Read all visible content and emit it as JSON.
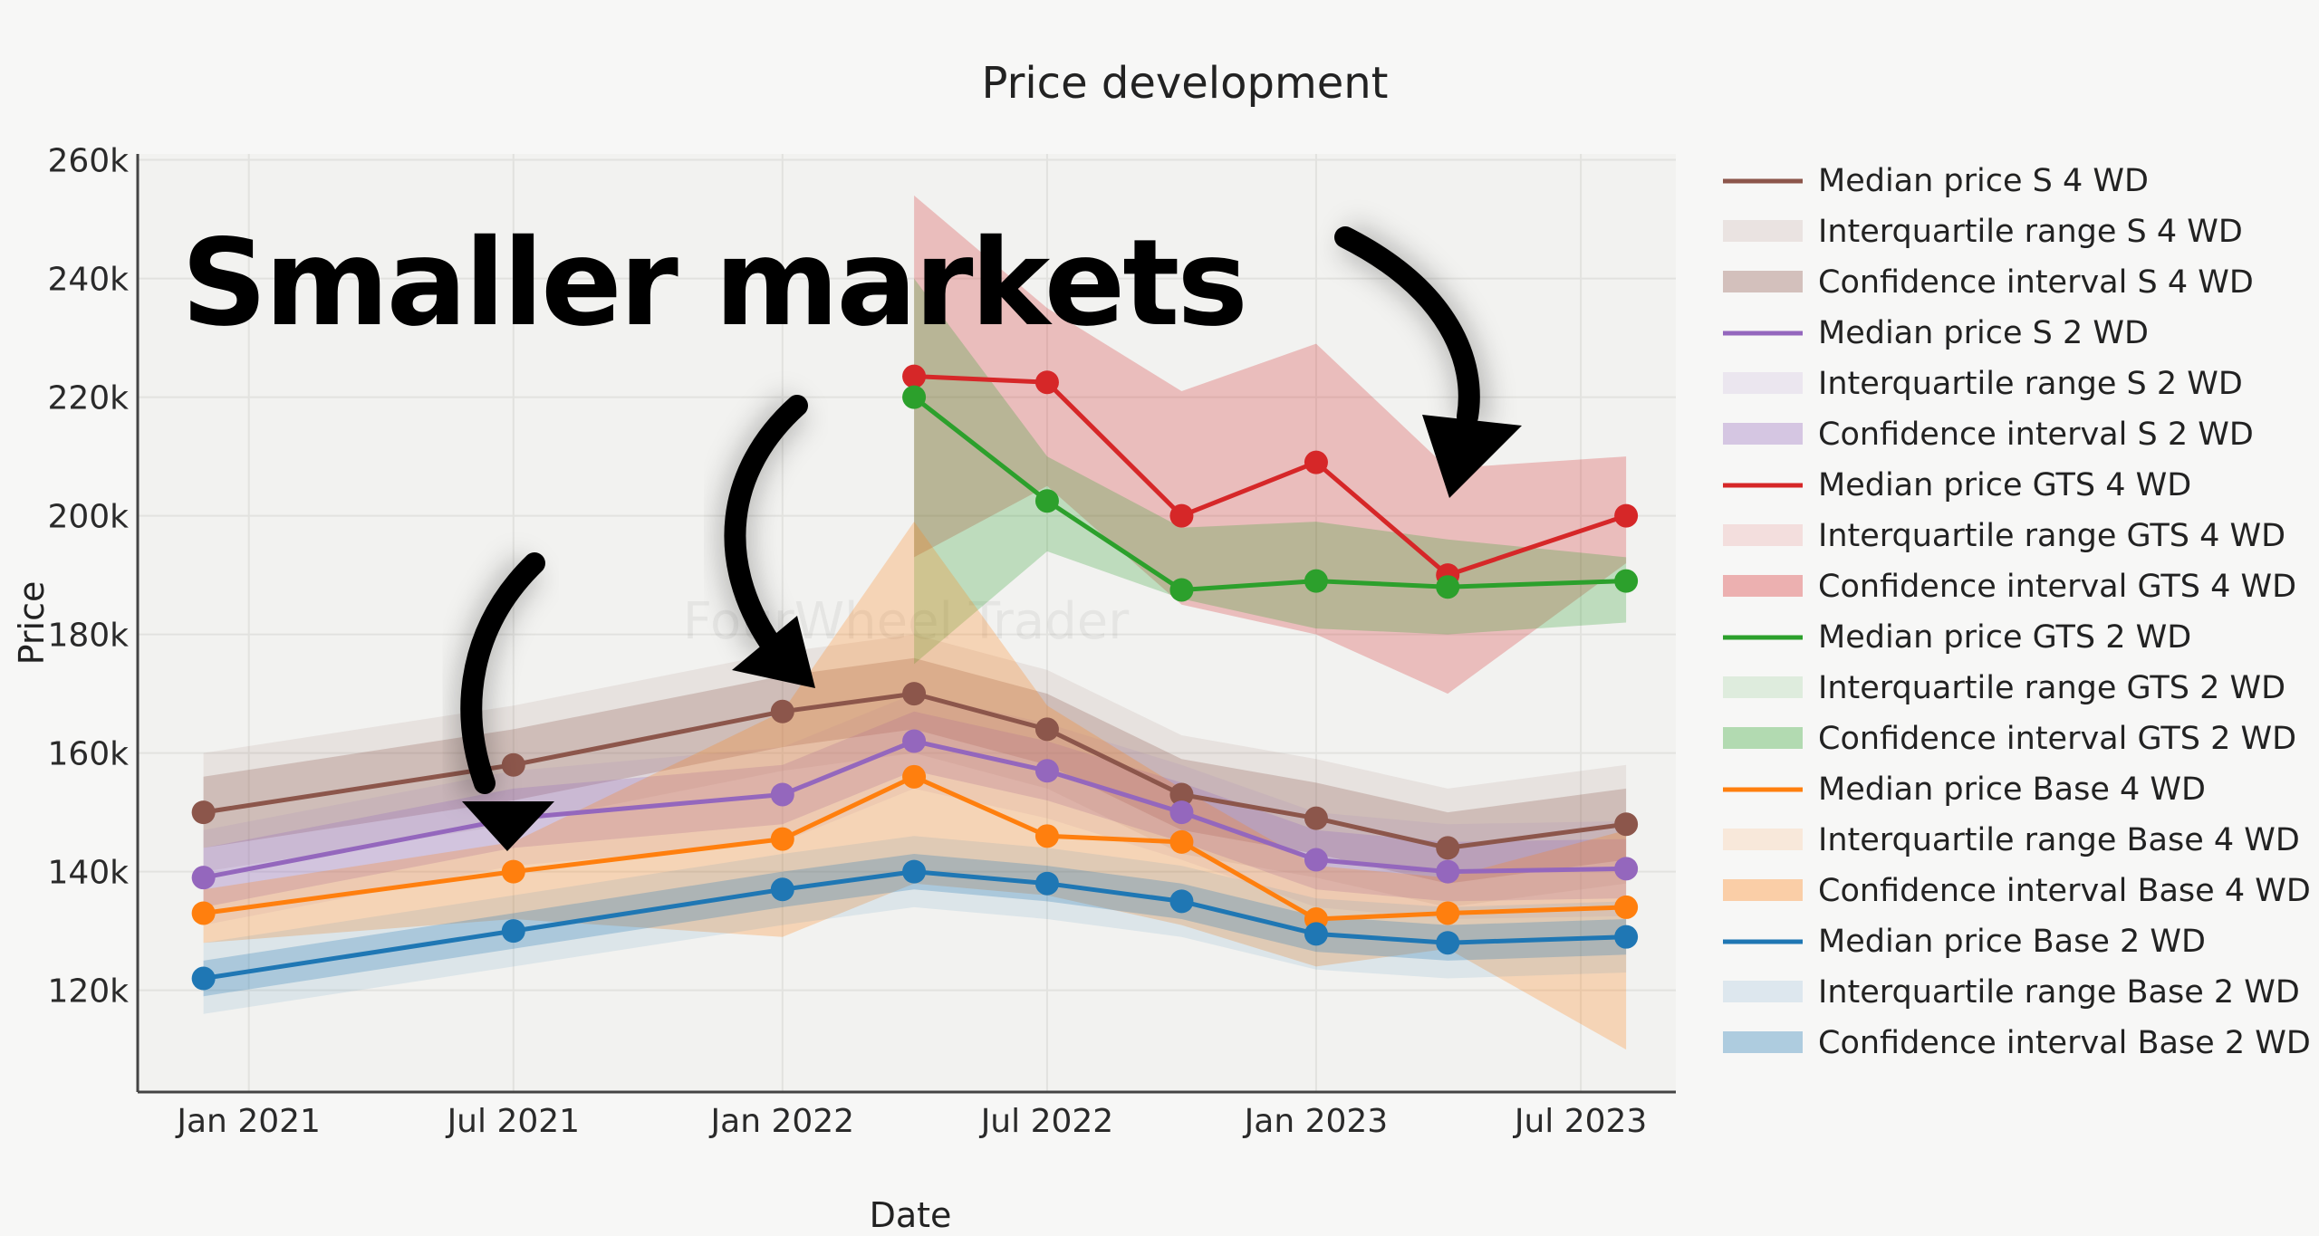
{
  "colors": {
    "S 4 WD": "#8c564b",
    "S 2 WD": "#9467bd",
    "GTS 4 WD": "#d62728",
    "GTS 2 WD": "#2ca02c",
    "Base 4 WD": "#ff7f0e",
    "Base 2 WD": "#1f77b4"
  },
  "overlay": {
    "caption": "Smaller markets",
    "watermark": "FourWheel Trader"
  },
  "annotations": [
    {
      "name": "arrow-1",
      "icon": "curved-arrow-icon"
    },
    {
      "name": "arrow-2",
      "icon": "curved-arrow-icon"
    },
    {
      "name": "arrow-3",
      "icon": "curved-arrow-icon"
    }
  ],
  "chart_data": {
    "type": "line",
    "title": "Price development",
    "xlabel": "Date",
    "ylabel": "Price",
    "x_ticks": [
      "Jan 2021",
      "Jul 2021",
      "Jan 2022",
      "Jul 2022",
      "Jan 2023",
      "Jul 2023"
    ],
    "y_ticks": [
      "120k",
      "140k",
      "160k",
      "180k",
      "200k",
      "220k",
      "240k",
      "260k"
    ],
    "xlim": [
      "2020-10-17",
      "2023-09-04"
    ],
    "ylim": [
      103000,
      261000
    ],
    "grid": true,
    "legend_position": "right",
    "series": [
      {
        "name": "Median price S 4 WD",
        "color_key": "S 4 WD",
        "dates": [
          "2020-12-01",
          "2021-07-01",
          "2022-01-01",
          "2022-04-01",
          "2022-07-01",
          "2022-10-01",
          "2023-01-01",
          "2023-04-01",
          "2023-08-01"
        ],
        "values": [
          150000,
          158000,
          167000,
          170000,
          164000,
          153000,
          149000,
          144000,
          148000
        ],
        "iqr_width": 10000,
        "ci_width": 6000
      },
      {
        "name": "Median price S 2 WD",
        "color_key": "S 2 WD",
        "dates": [
          "2020-12-01",
          "2021-07-01",
          "2022-01-01",
          "2022-04-01",
          "2022-07-01",
          "2022-10-01",
          "2023-01-01",
          "2023-04-01",
          "2023-08-01"
        ],
        "values": [
          139000,
          149000,
          153000,
          162000,
          157000,
          150000,
          142000,
          140000,
          140500
        ],
        "iqr_width": 8000,
        "ci_width": 5000
      },
      {
        "name": "Median price GTS 4 WD",
        "color_key": "GTS 4 WD",
        "dates": [
          "2022-04-01",
          "2022-07-01",
          "2022-10-01",
          "2023-01-01",
          "2023-04-01",
          "2023-08-01"
        ],
        "values": [
          223500,
          222500,
          200000,
          209000,
          190000,
          200000
        ],
        "ci_upper": [
          254000,
          235000,
          221000,
          229000,
          208000,
          210000
        ],
        "ci_lower": [
          193000,
          205000,
          185000,
          180000,
          170000,
          192000
        ]
      },
      {
        "name": "Median price GTS 2 WD",
        "color_key": "GTS 2 WD",
        "dates": [
          "2022-04-01",
          "2022-07-01",
          "2022-10-01",
          "2023-01-01",
          "2023-04-01",
          "2023-08-01"
        ],
        "values": [
          220000,
          202500,
          187500,
          189000,
          188000,
          189000
        ],
        "ci_upper": [
          240000,
          210000,
          198000,
          199000,
          196000,
          193000
        ],
        "ci_lower": [
          175000,
          194000,
          186000,
          181000,
          180000,
          182000
        ]
      },
      {
        "name": "Median price Base 4 WD",
        "color_key": "Base 4 WD",
        "dates": [
          "2020-12-01",
          "2021-07-01",
          "2022-01-01",
          "2022-04-01",
          "2022-07-01",
          "2022-10-01",
          "2023-01-01",
          "2023-04-01",
          "2023-08-01"
        ],
        "values": [
          133000,
          140000,
          145500,
          156000,
          146000,
          145000,
          132000,
          133000,
          134000
        ],
        "ci_upper": [
          137000,
          145000,
          167000,
          199000,
          168000,
          154000,
          141000,
          139000,
          147000
        ],
        "ci_lower": [
          128000,
          132000,
          129000,
          138000,
          136000,
          131000,
          124000,
          127000,
          110000
        ]
      },
      {
        "name": "Median price Base 2 WD",
        "color_key": "Base 2 WD",
        "dates": [
          "2020-12-01",
          "2021-07-01",
          "2022-01-01",
          "2022-04-01",
          "2022-07-01",
          "2022-10-01",
          "2023-01-01",
          "2023-04-01",
          "2023-08-01"
        ],
        "values": [
          122000,
          130000,
          137000,
          140000,
          138000,
          135000,
          129500,
          128000,
          129000
        ],
        "iqr_width": 6000,
        "ci_width": 3000
      }
    ],
    "legend": [
      {
        "label": "Median price S 4 WD",
        "kind": "line",
        "color_key": "S 4 WD"
      },
      {
        "label": "Interquartile range S 4 WD",
        "kind": "iqr",
        "color_key": "S 4 WD"
      },
      {
        "label": "Confidence interval S 4 WD",
        "kind": "ci",
        "color_key": "S 4 WD"
      },
      {
        "label": "Median price S 2 WD",
        "kind": "line",
        "color_key": "S 2 WD"
      },
      {
        "label": "Interquartile range S 2 WD",
        "kind": "iqr",
        "color_key": "S 2 WD"
      },
      {
        "label": "Confidence interval S 2 WD",
        "kind": "ci",
        "color_key": "S 2 WD"
      },
      {
        "label": "Median price GTS 4 WD",
        "kind": "line",
        "color_key": "GTS 4 WD"
      },
      {
        "label": "Interquartile range GTS 4 WD",
        "kind": "iqr",
        "color_key": "GTS 4 WD"
      },
      {
        "label": "Confidence interval GTS 4 WD",
        "kind": "ci",
        "color_key": "GTS 4 WD"
      },
      {
        "label": "Median price GTS 2 WD",
        "kind": "line",
        "color_key": "GTS 2 WD"
      },
      {
        "label": "Interquartile range GTS 2 WD",
        "kind": "iqr",
        "color_key": "GTS 2 WD"
      },
      {
        "label": "Confidence interval GTS 2 WD",
        "kind": "ci",
        "color_key": "GTS 2 WD"
      },
      {
        "label": "Median price Base 4 WD",
        "kind": "line",
        "color_key": "Base 4 WD"
      },
      {
        "label": "Interquartile range Base 4 WD",
        "kind": "iqr",
        "color_key": "Base 4 WD"
      },
      {
        "label": "Confidence interval Base 4 WD",
        "kind": "ci",
        "color_key": "Base 4 WD"
      },
      {
        "label": "Median price Base 2 WD",
        "kind": "line",
        "color_key": "Base 2 WD"
      },
      {
        "label": "Interquartile range Base 2 WD",
        "kind": "iqr",
        "color_key": "Base 2 WD"
      },
      {
        "label": "Confidence interval Base 2 WD",
        "kind": "ci",
        "color_key": "Base 2 WD"
      }
    ]
  }
}
